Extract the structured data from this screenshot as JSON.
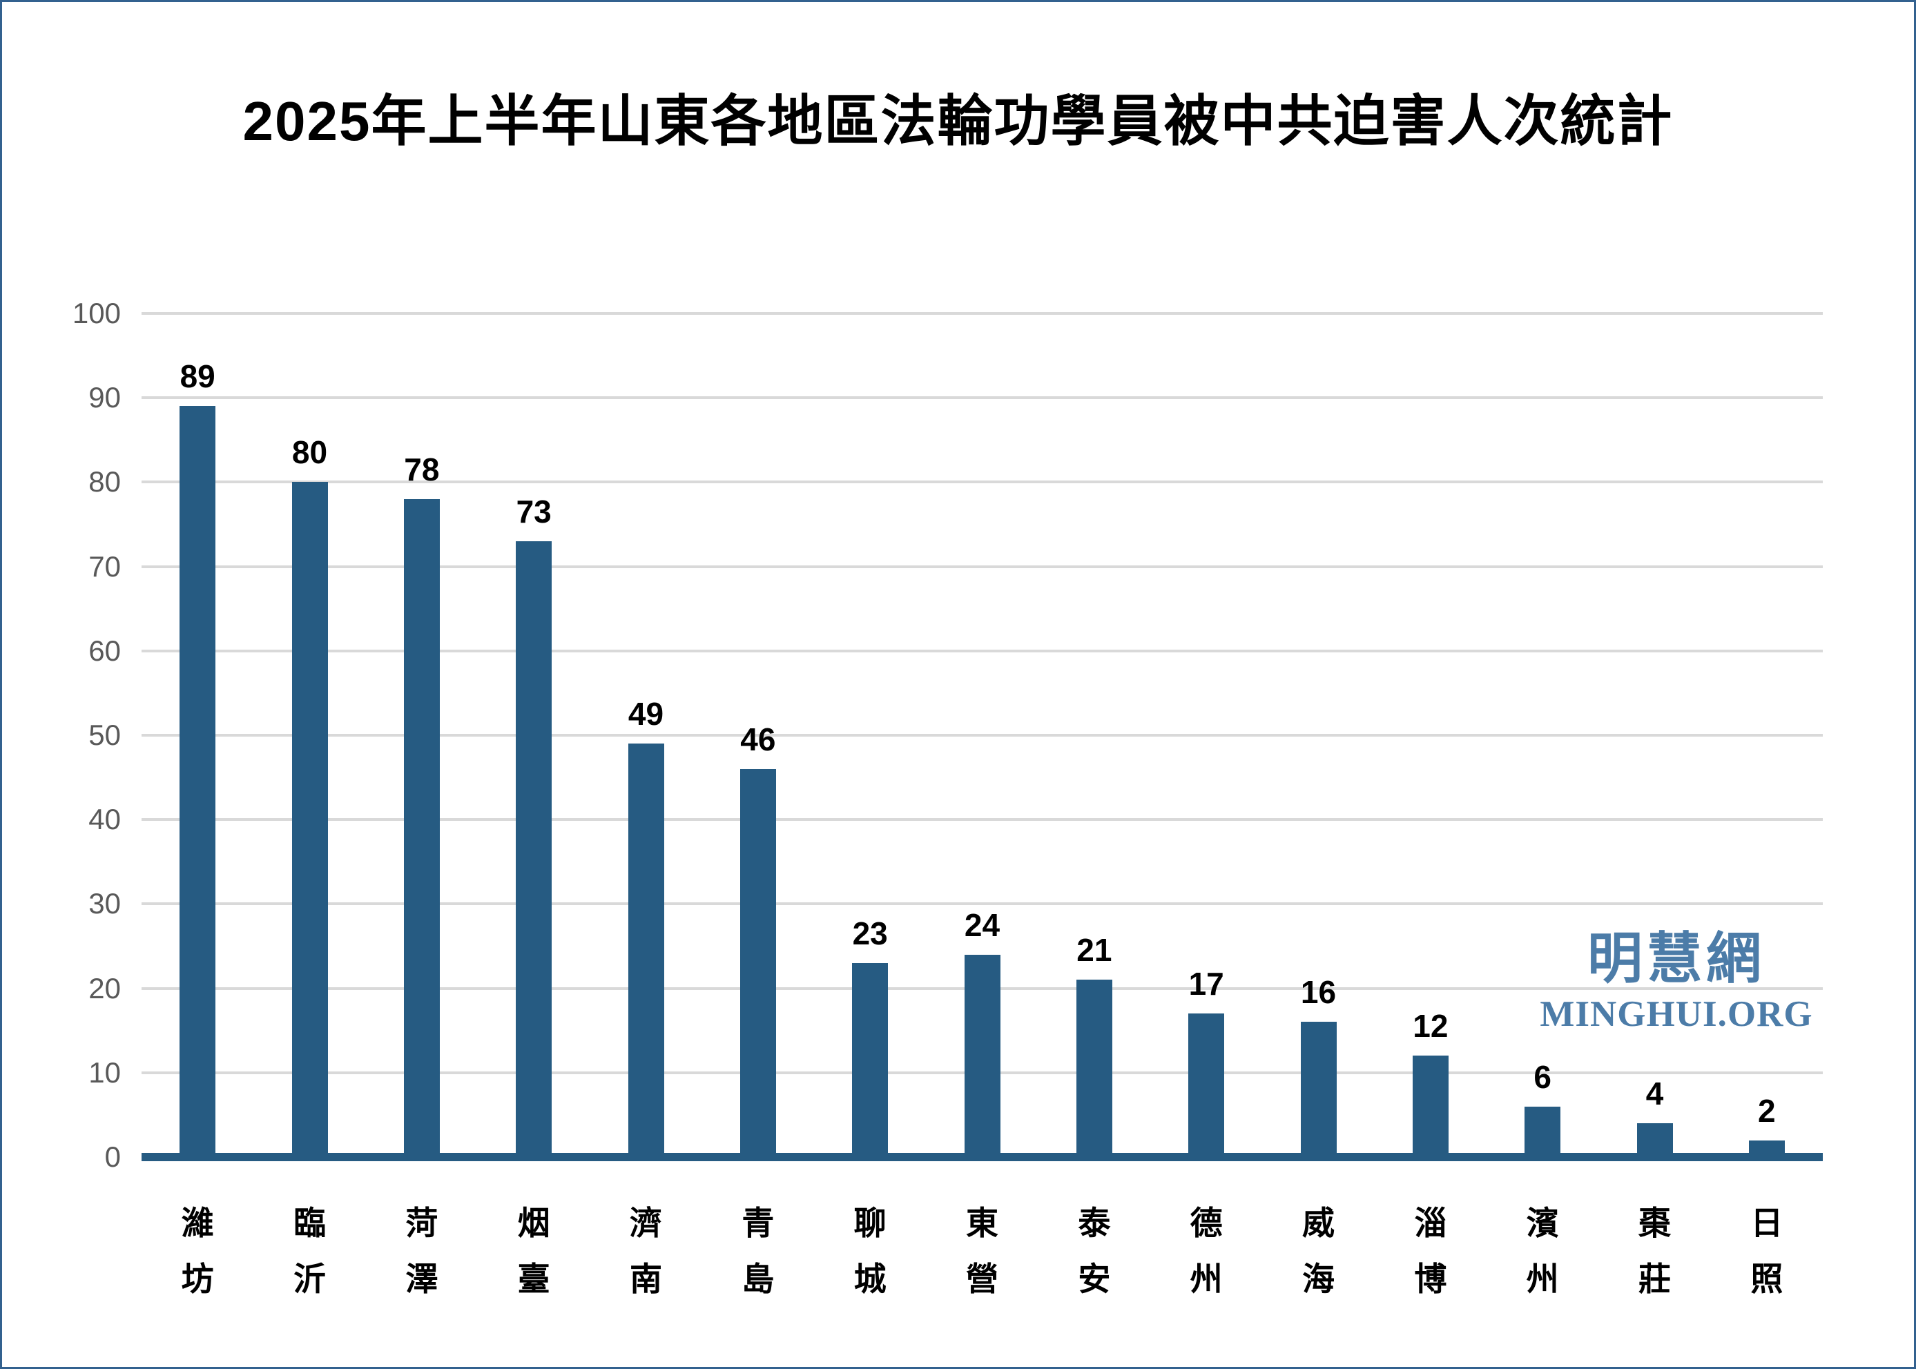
{
  "page": {
    "background_color": "#FFFFFF",
    "border_color": "#33618F"
  },
  "title": "2025年上半年山東各地區法輪功學員被中共迫害人次統計",
  "watermark": {
    "cjk": "明慧網",
    "latin": "MINGHUI.ORG",
    "color": "#4C7CA8"
  },
  "chart_data": {
    "type": "bar",
    "title": "2025年上半年山東各地區法輪功學員被中共迫害人次統計",
    "categories": [
      "濰坊",
      "臨沂",
      "菏澤",
      "烟臺",
      "濟南",
      "青島",
      "聊城",
      "東營",
      "泰安",
      "德州",
      "威海",
      "淄博",
      "濱州",
      "棗莊",
      "日照"
    ],
    "values": [
      89,
      80,
      78,
      73,
      49,
      46,
      23,
      24,
      21,
      17,
      16,
      12,
      6,
      4,
      2
    ],
    "xlabel": "",
    "ylabel": "",
    "ylim": [
      0,
      100
    ],
    "yticks": [
      0,
      10,
      20,
      30,
      40,
      50,
      60,
      70,
      80,
      90,
      100
    ],
    "grid": true,
    "legend": "none",
    "value_labels_shown": true,
    "bar_color": "#265B82",
    "axis_line_color": "#265B82",
    "gridline_color": "#D9D9D9",
    "tick_label_color": "#595959",
    "value_label_color": "#000000"
  }
}
